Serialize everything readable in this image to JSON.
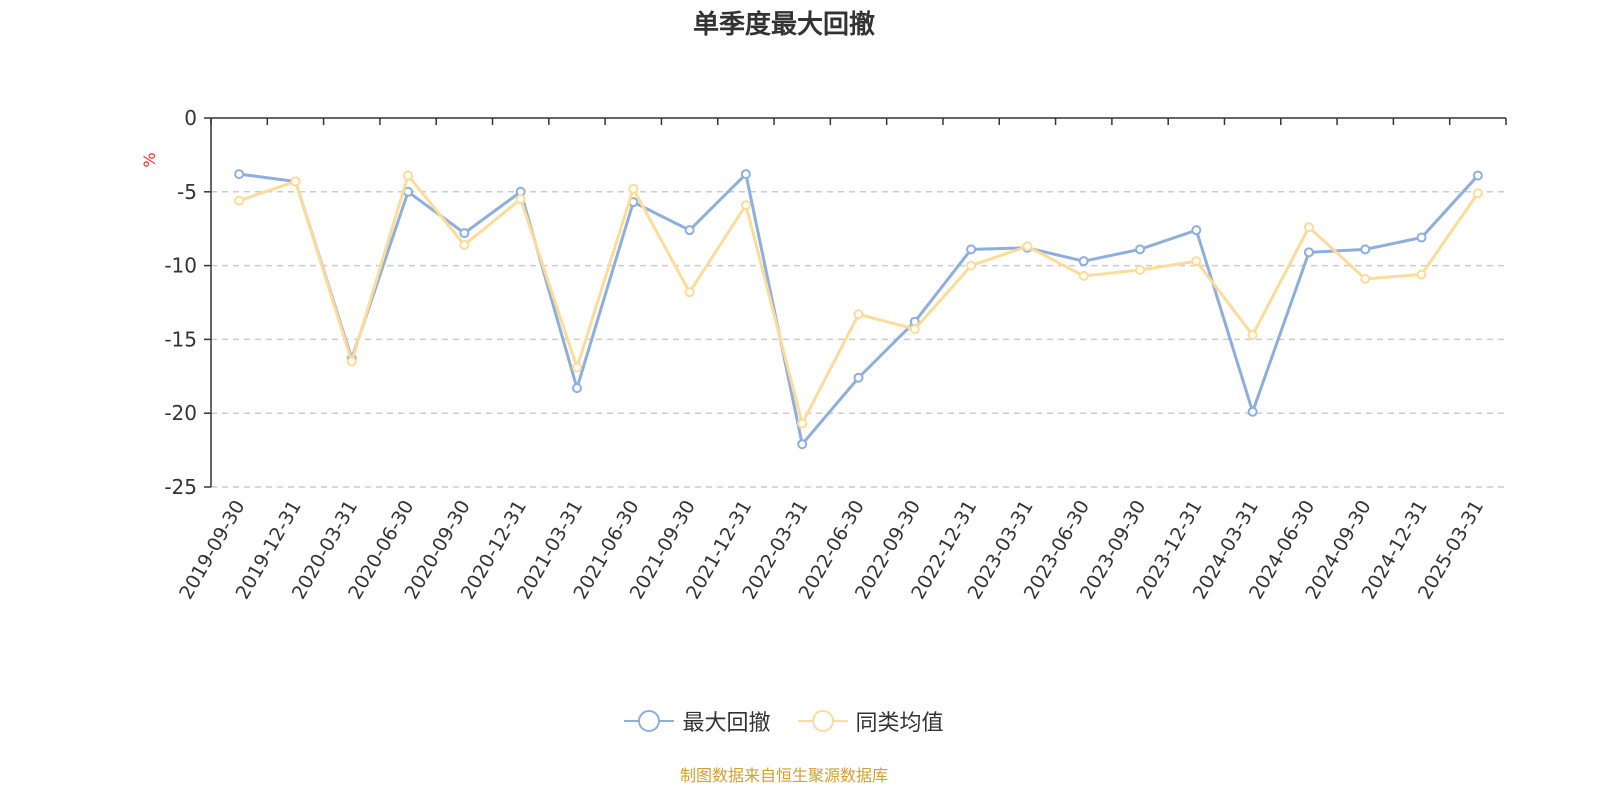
{
  "chart_data": {
    "type": "line",
    "title": "单季度最大回撤",
    "ylabel": "%",
    "ylim": [
      -25,
      0
    ],
    "yticks": [
      0,
      -5,
      -10,
      -15,
      -20,
      -25
    ],
    "grid": true,
    "legend_position": "bottom",
    "categories": [
      "2019-09-30",
      "2019-12-31",
      "2020-03-31",
      "2020-06-30",
      "2020-09-30",
      "2020-12-31",
      "2021-03-31",
      "2021-06-30",
      "2021-09-30",
      "2021-12-31",
      "2022-03-31",
      "2022-06-30",
      "2022-09-30",
      "2022-12-31",
      "2023-03-31",
      "2023-06-30",
      "2023-09-30",
      "2023-12-31",
      "2024-03-31",
      "2024-06-30",
      "2024-09-30",
      "2024-12-31",
      "2025-03-31"
    ],
    "series": [
      {
        "name": "最大回撤",
        "color": "#8eaedb",
        "values": [
          -3.8,
          -4.3,
          -16.3,
          -5.0,
          -7.8,
          -5.0,
          -18.3,
          -5.7,
          -7.6,
          -3.8,
          -22.1,
          -17.6,
          -13.8,
          -8.9,
          -8.8,
          -9.7,
          -8.9,
          -7.6,
          -19.9,
          -9.1,
          -8.9,
          -8.1,
          -3.9
        ]
      },
      {
        "name": "同类均值",
        "color": "#fddc9b",
        "values": [
          -5.6,
          -4.3,
          -16.5,
          -3.9,
          -8.6,
          -5.5,
          -16.9,
          -4.8,
          -11.8,
          -5.9,
          -20.7,
          -13.3,
          -14.3,
          -10.0,
          -8.7,
          -10.7,
          -10.3,
          -9.7,
          -14.7,
          -7.4,
          -10.9,
          -10.6,
          -5.1
        ]
      }
    ]
  },
  "footer": {
    "source": "制图数据来自恒生聚源数据库",
    "source_color": "#d0a030"
  },
  "axis_unit_color": "#e8302a"
}
